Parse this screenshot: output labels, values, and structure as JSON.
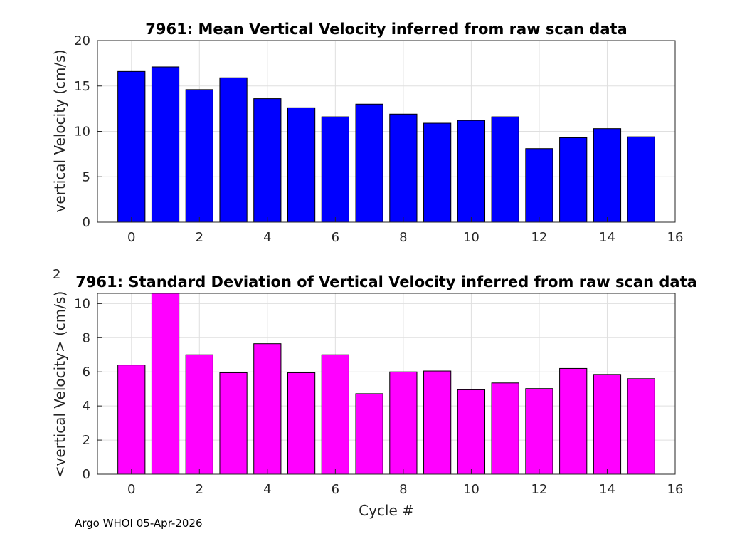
{
  "chart_data": [
    {
      "type": "bar",
      "title": "7961: Mean Vertical Velocity inferred from raw scan data",
      "xlabel": "",
      "ylabel": "vertical Velocity (cm/s)",
      "x": [
        0,
        1,
        2,
        3,
        4,
        5,
        6,
        7,
        8,
        9,
        10,
        11,
        12,
        13,
        14,
        15
      ],
      "values": [
        16.6,
        17.1,
        14.6,
        15.9,
        13.6,
        12.6,
        11.6,
        13.0,
        11.9,
        10.9,
        11.2,
        11.6,
        8.1,
        9.3,
        10.3,
        9.4
      ],
      "xlim": [
        -1,
        16
      ],
      "ylim": [
        0,
        20
      ],
      "xticks": [
        0,
        2,
        4,
        6,
        8,
        10,
        12,
        14,
        16
      ],
      "yticks": [
        0,
        5,
        10,
        15,
        20
      ],
      "bar_color": "#0000ff",
      "grid": true
    },
    {
      "type": "bar",
      "title": "7961: Standard Deviation of Vertical Velocity inferred from raw scan data",
      "xlabel": "Cycle #",
      "ylabel": "<vertical Velocity> (cm/s)",
      "ylabel_exponent": "2",
      "x": [
        0,
        1,
        2,
        3,
        4,
        5,
        6,
        7,
        8,
        9,
        10,
        11,
        12,
        13,
        14,
        15
      ],
      "values": [
        6.4,
        10.6,
        7.0,
        5.95,
        7.65,
        5.95,
        7.0,
        4.72,
        6.0,
        6.05,
        4.95,
        5.35,
        5.02,
        6.2,
        5.85,
        5.6
      ],
      "xlim": [
        -1,
        16
      ],
      "ylim": [
        0,
        10.6
      ],
      "xticks": [
        0,
        2,
        4,
        6,
        8,
        10,
        12,
        14,
        16
      ],
      "yticks": [
        0,
        2,
        4,
        6,
        8,
        10
      ],
      "bar_color": "#ff00ff",
      "grid": true
    }
  ],
  "footer": "Argo WHOI 05-Apr-2026"
}
